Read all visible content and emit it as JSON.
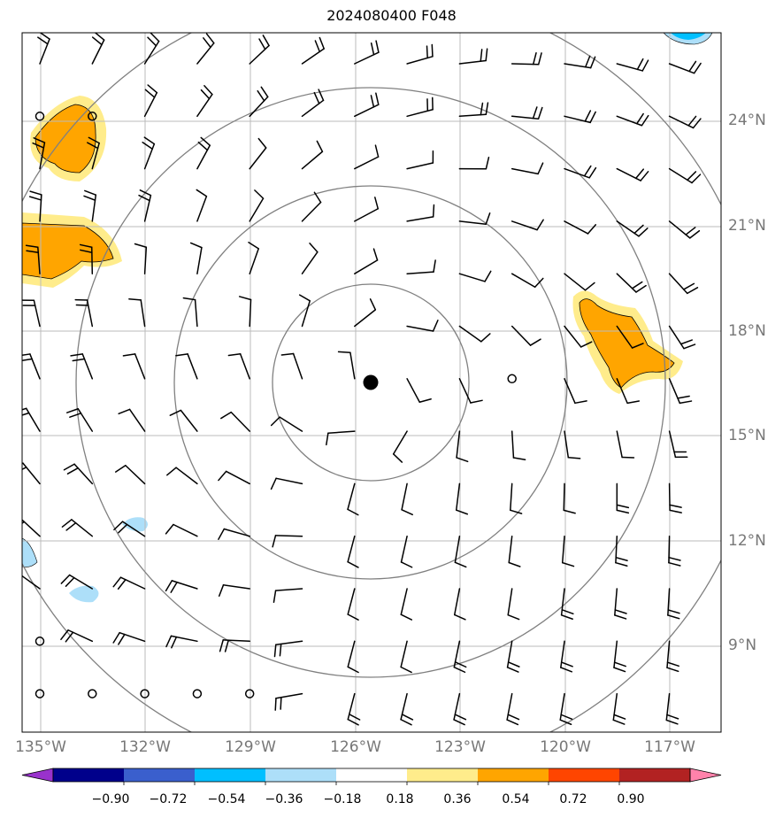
{
  "title": "2024080400 F048",
  "lat_labels": [
    "24°N",
    "21°N",
    "18°N",
    "15°N",
    "12°N",
    "9°N"
  ],
  "lon_labels": [
    "135°W",
    "132°W",
    "129°W",
    "126°W",
    "123°W",
    "120°W",
    "117°W"
  ],
  "colorbar": {
    "ticks": [
      "−0.90",
      "−0.72",
      "−0.54",
      "−0.36",
      "−0.18",
      "0.18",
      "0.36",
      "0.54",
      "0.72",
      "0.90"
    ],
    "colors": [
      "#9932CC",
      "#00008B",
      "#3A5FCD",
      "#00BFFF",
      "#ADDFF9",
      "#FFFFFF",
      "#FFEC8B",
      "#FFA500",
      "#FF4500",
      "#B22222",
      "#FF82AB"
    ]
  },
  "storm_center_marker": "filled-black-circle",
  "range_ring_color": "#808080",
  "grid_color": "#bbbbbb"
}
